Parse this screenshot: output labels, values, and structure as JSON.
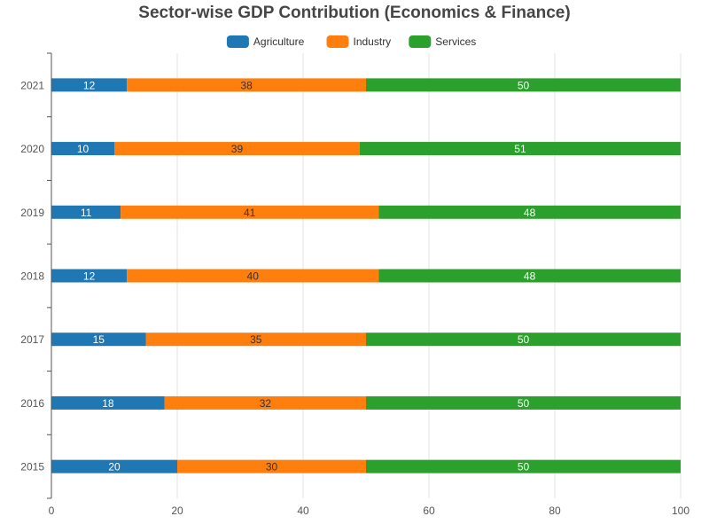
{
  "chart_data": {
    "type": "bar",
    "orientation": "horizontal",
    "stacked": true,
    "title": "Sector-wise GDP Contribution (Economics & Finance)",
    "xlabel": "",
    "ylabel": "",
    "categories": [
      "2015",
      "2016",
      "2017",
      "2018",
      "2019",
      "2020",
      "2021"
    ],
    "series": [
      {
        "name": "Agriculture",
        "color": "#1f77b4",
        "label_color": "#ffffff",
        "values": [
          20,
          18,
          15,
          12,
          11,
          10,
          12
        ]
      },
      {
        "name": "Industry",
        "color": "#ff7f0e",
        "label_color": "#333333",
        "values": [
          30,
          32,
          35,
          40,
          41,
          39,
          38
        ]
      },
      {
        "name": "Services",
        "color": "#2ca02c",
        "label_color": "#ffffff",
        "values": [
          50,
          50,
          50,
          48,
          48,
          51,
          50
        ]
      }
    ],
    "xlim": [
      0,
      100
    ],
    "xticks": [
      "0",
      "20",
      "40",
      "60",
      "80",
      "100"
    ],
    "grid": "vertical",
    "legend_position": "top"
  }
}
